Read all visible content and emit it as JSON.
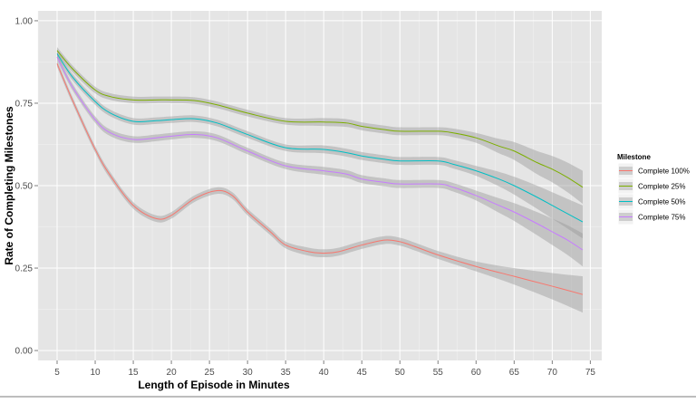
{
  "chart_data": {
    "type": "line",
    "title": "",
    "xlabel": "Length of Episode in Minutes",
    "ylabel": "Rate of Completing Milestones",
    "xlim": [
      2.5,
      76.5
    ],
    "ylim": [
      -0.03,
      1.03
    ],
    "x_ticks": [
      5,
      10,
      15,
      20,
      25,
      30,
      35,
      40,
      45,
      50,
      55,
      60,
      65,
      70,
      75
    ],
    "y_ticks": [
      0,
      0.25,
      0.5,
      0.75,
      1.0
    ],
    "y_tick_labels": [
      "0.00",
      "0.25",
      "0.50",
      "0.75",
      "1.00"
    ],
    "grid": true,
    "background": "#e5e5e5",
    "legend": {
      "title": "Milestone",
      "placement": "right"
    },
    "series": [
      {
        "name": "Complete 100%",
        "color": "#f8766d",
        "x": [
          5,
          7,
          10,
          12,
          15,
          18,
          20,
          23,
          26,
          28,
          30,
          33,
          35,
          38,
          40,
          42,
          45,
          48,
          50,
          52,
          55,
          60,
          65,
          70,
          74
        ],
        "values": [
          0.87,
          0.76,
          0.61,
          0.53,
          0.44,
          0.4,
          0.41,
          0.46,
          0.485,
          0.47,
          0.42,
          0.36,
          0.32,
          0.3,
          0.295,
          0.3,
          0.32,
          0.335,
          0.33,
          0.315,
          0.29,
          0.255,
          0.225,
          0.195,
          0.17
        ],
        "band": [
          0.01,
          0.01,
          0.01,
          0.01,
          0.01,
          0.01,
          0.01,
          0.01,
          0.01,
          0.01,
          0.01,
          0.01,
          0.01,
          0.012,
          0.012,
          0.012,
          0.012,
          0.012,
          0.012,
          0.012,
          0.012,
          0.015,
          0.025,
          0.04,
          0.055
        ]
      },
      {
        "name": "Complete 25%",
        "color": "#7cae00",
        "x": [
          5,
          7,
          10,
          12,
          15,
          18,
          20,
          23,
          26,
          30,
          35,
          40,
          43,
          45,
          48,
          50,
          55,
          57,
          60,
          63,
          65,
          68,
          70,
          72,
          74
        ],
        "values": [
          0.91,
          0.855,
          0.79,
          0.77,
          0.76,
          0.76,
          0.76,
          0.758,
          0.745,
          0.72,
          0.695,
          0.693,
          0.69,
          0.68,
          0.67,
          0.665,
          0.665,
          0.66,
          0.645,
          0.62,
          0.605,
          0.57,
          0.55,
          0.525,
          0.495
        ],
        "band": [
          0.01,
          0.01,
          0.01,
          0.01,
          0.01,
          0.01,
          0.01,
          0.01,
          0.01,
          0.01,
          0.01,
          0.012,
          0.012,
          0.012,
          0.012,
          0.012,
          0.012,
          0.013,
          0.015,
          0.022,
          0.027,
          0.035,
          0.04,
          0.045,
          0.05
        ]
      },
      {
        "name": "Complete 50%",
        "color": "#00bfc4",
        "x": [
          5,
          7,
          10,
          12,
          15,
          18,
          20,
          23,
          26,
          30,
          35,
          40,
          43,
          45,
          48,
          50,
          55,
          57,
          60,
          63,
          65,
          68,
          70,
          72,
          74
        ],
        "values": [
          0.9,
          0.83,
          0.755,
          0.72,
          0.695,
          0.697,
          0.7,
          0.703,
          0.69,
          0.655,
          0.615,
          0.61,
          0.6,
          0.59,
          0.58,
          0.575,
          0.575,
          0.565,
          0.545,
          0.52,
          0.5,
          0.465,
          0.44,
          0.415,
          0.39
        ],
        "band": [
          0.01,
          0.01,
          0.01,
          0.01,
          0.01,
          0.01,
          0.01,
          0.01,
          0.01,
          0.01,
          0.01,
          0.012,
          0.012,
          0.012,
          0.012,
          0.012,
          0.012,
          0.013,
          0.015,
          0.022,
          0.027,
          0.035,
          0.04,
          0.045,
          0.05
        ]
      },
      {
        "name": "Complete 75%",
        "color": "#c77cff",
        "x": [
          5,
          7,
          10,
          12,
          15,
          18,
          20,
          23,
          26,
          30,
          35,
          40,
          43,
          45,
          48,
          50,
          55,
          57,
          60,
          63,
          65,
          68,
          70,
          72,
          74
        ],
        "values": [
          0.89,
          0.8,
          0.7,
          0.66,
          0.64,
          0.645,
          0.65,
          0.655,
          0.645,
          0.605,
          0.56,
          0.545,
          0.535,
          0.52,
          0.51,
          0.505,
          0.505,
          0.495,
          0.47,
          0.44,
          0.42,
          0.385,
          0.36,
          0.335,
          0.305
        ],
        "band": [
          0.01,
          0.01,
          0.01,
          0.01,
          0.01,
          0.01,
          0.01,
          0.01,
          0.01,
          0.01,
          0.01,
          0.012,
          0.012,
          0.012,
          0.012,
          0.012,
          0.012,
          0.013,
          0.015,
          0.022,
          0.027,
          0.035,
          0.04,
          0.045,
          0.05
        ]
      }
    ]
  }
}
